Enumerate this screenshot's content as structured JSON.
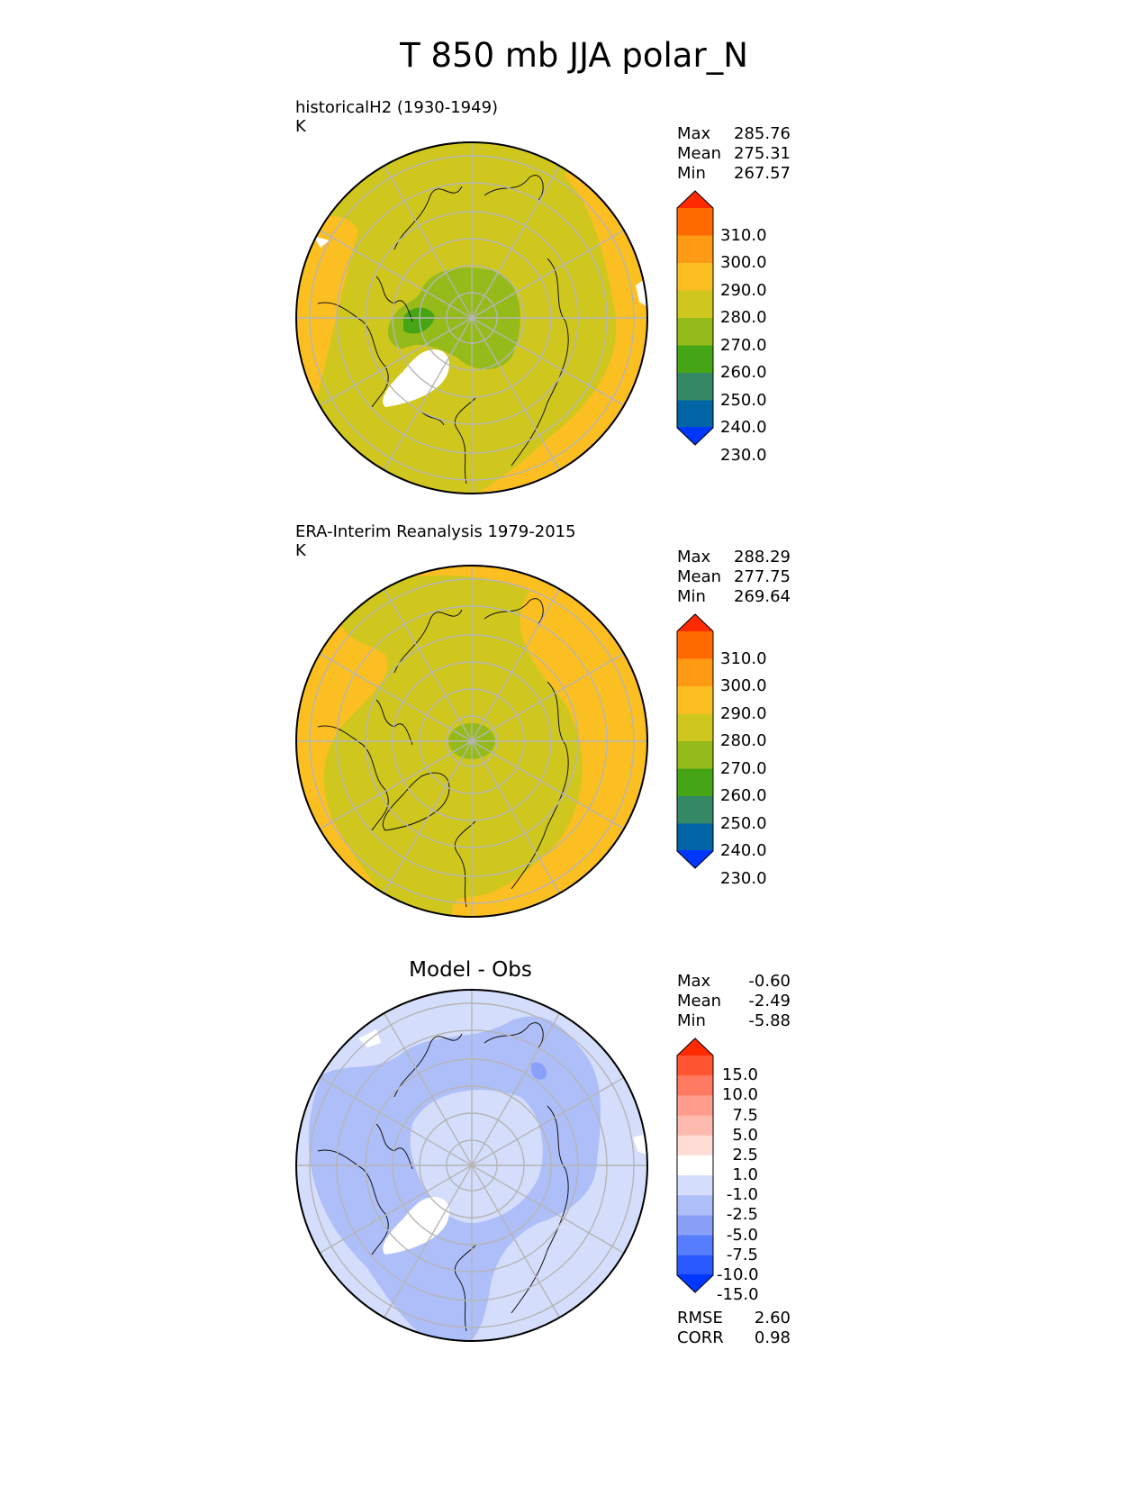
{
  "figure": {
    "title": "T 850 mb JJA polar_N"
  },
  "panels": [
    {
      "title_line1": "historicalH2 (1930-1949)",
      "title_line2": "K",
      "stats": {
        "max_label": "Max",
        "max": "285.76",
        "mean_label": "Mean",
        "mean": "275.31",
        "min_label": "Min",
        "min": "267.57"
      },
      "colorbar": {
        "labels": [
          "310.0",
          "300.0",
          "290.0",
          "280.0",
          "270.0",
          "260.0",
          "250.0",
          "240.0",
          "230.0"
        ],
        "colors": [
          "#ff2a00",
          "#ff6a00",
          "#ff9a14",
          "#fcbf22",
          "#d0c71e",
          "#94bb1a",
          "#46a514",
          "#358866",
          "#0064a5",
          "#0037ff"
        ]
      }
    },
    {
      "title_line1": "ERA-Interim Reanalysis 1979-2015",
      "title_line2": "K",
      "stats": {
        "max_label": "Max",
        "max": "288.29",
        "mean_label": "Mean",
        "mean": "277.75",
        "min_label": "Min",
        "min": "269.64"
      },
      "colorbar": {
        "labels": [
          "310.0",
          "300.0",
          "290.0",
          "280.0",
          "270.0",
          "260.0",
          "250.0",
          "240.0",
          "230.0"
        ],
        "colors": [
          "#ff2a00",
          "#ff6a00",
          "#ff9a14",
          "#fcbf22",
          "#d0c71e",
          "#94bb1a",
          "#46a514",
          "#358866",
          "#0064a5",
          "#0037ff"
        ]
      }
    },
    {
      "title_line1": "Model - Obs",
      "stats": {
        "max_label": "Max",
        "max": "-0.60",
        "mean_label": "Mean",
        "mean": "-2.49",
        "min_label": "Min",
        "min": "-5.88"
      },
      "colorbar": {
        "labels": [
          "15.0",
          "10.0",
          "7.5",
          "5.0",
          "2.5",
          "1.0",
          "-1.0",
          "-2.5",
          "-5.0",
          "-7.5",
          "-10.0",
          "-15.0"
        ],
        "colors": [
          "#ff2a00",
          "#ff5533",
          "#ff7a61",
          "#ff9c8c",
          "#ffbab0",
          "#ffdcd6",
          "#ffffff",
          "#d4ddfb",
          "#aebef9",
          "#8a9ff8",
          "#557dfd",
          "#2a58ff",
          "#0037ff"
        ]
      },
      "metrics": {
        "rmse_label": "RMSE",
        "rmse": "2.60",
        "corr_label": "CORR",
        "corr": "0.98"
      }
    }
  ],
  "map_colors": {
    "p1_base": "#d0c71e",
    "p1_warm": "#fcbf22",
    "p1_cold": "#94bb1a",
    "p1_coldest": "#46a514",
    "p2_base": "#fcbf22",
    "p2_mid": "#d0c71e",
    "p2_cold": "#94bb1a",
    "p3_base": "#d4ddfb",
    "p3_mid": "#aebef9",
    "p3_strong": "#8a9ff8",
    "missing": "#ffffff",
    "coast": "#111111",
    "grid": "#b5b5b5"
  }
}
